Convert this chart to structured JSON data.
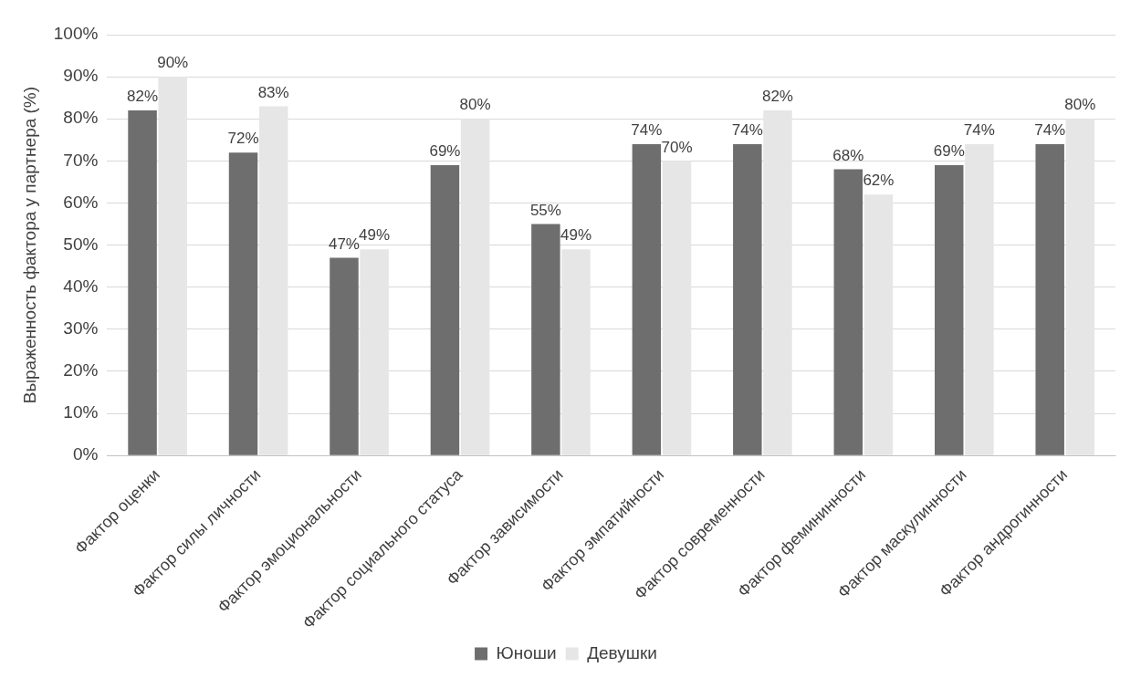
{
  "chart_data": {
    "type": "bar",
    "ylabel": "Выраженность фактора у партнера (%)",
    "categories": [
      "Фактор оценки",
      "Фактор силы личности",
      "Фактор эмоциональности",
      "Фактор социального статуса",
      "Фактор зависимости",
      "Фактор эмпатийности",
      "Фактор современности",
      "Фактор фемининности",
      "Фактор маскулинности",
      "Фактор андрогинности"
    ],
    "series": [
      {
        "name": "Юноши",
        "color": "#6e6e6e",
        "values": [
          82,
          72,
          47,
          69,
          55,
          74,
          74,
          68,
          69,
          74
        ],
        "value_labels": [
          "82%",
          "72%",
          "47%",
          "69%",
          "55%",
          "74%",
          "74%",
          "68%",
          "69%",
          "74%"
        ]
      },
      {
        "name": "Девушки",
        "color": "#e6e6e6",
        "values": [
          90,
          83,
          49,
          80,
          49,
          70,
          82,
          62,
          74,
          80
        ],
        "value_labels": [
          "90%",
          "83%",
          "49%",
          "80%",
          "49%",
          "70%",
          "82%",
          "62%",
          "74%",
          "80%"
        ]
      }
    ],
    "ylim": [
      0,
      100
    ],
    "yticks": [
      {
        "value": 0,
        "label": "0%"
      },
      {
        "value": 10,
        "label": "10%"
      },
      {
        "value": 20,
        "label": "20%"
      },
      {
        "value": 30,
        "label": "30%"
      },
      {
        "value": 40,
        "label": "40%"
      },
      {
        "value": 50,
        "label": "50%"
      },
      {
        "value": 60,
        "label": "60%"
      },
      {
        "value": 70,
        "label": "70%"
      },
      {
        "value": 80,
        "label": "80%"
      },
      {
        "value": 90,
        "label": "90%"
      },
      {
        "value": 100,
        "label": "100%"
      }
    ],
    "grid": "y",
    "legend": "bottom"
  }
}
